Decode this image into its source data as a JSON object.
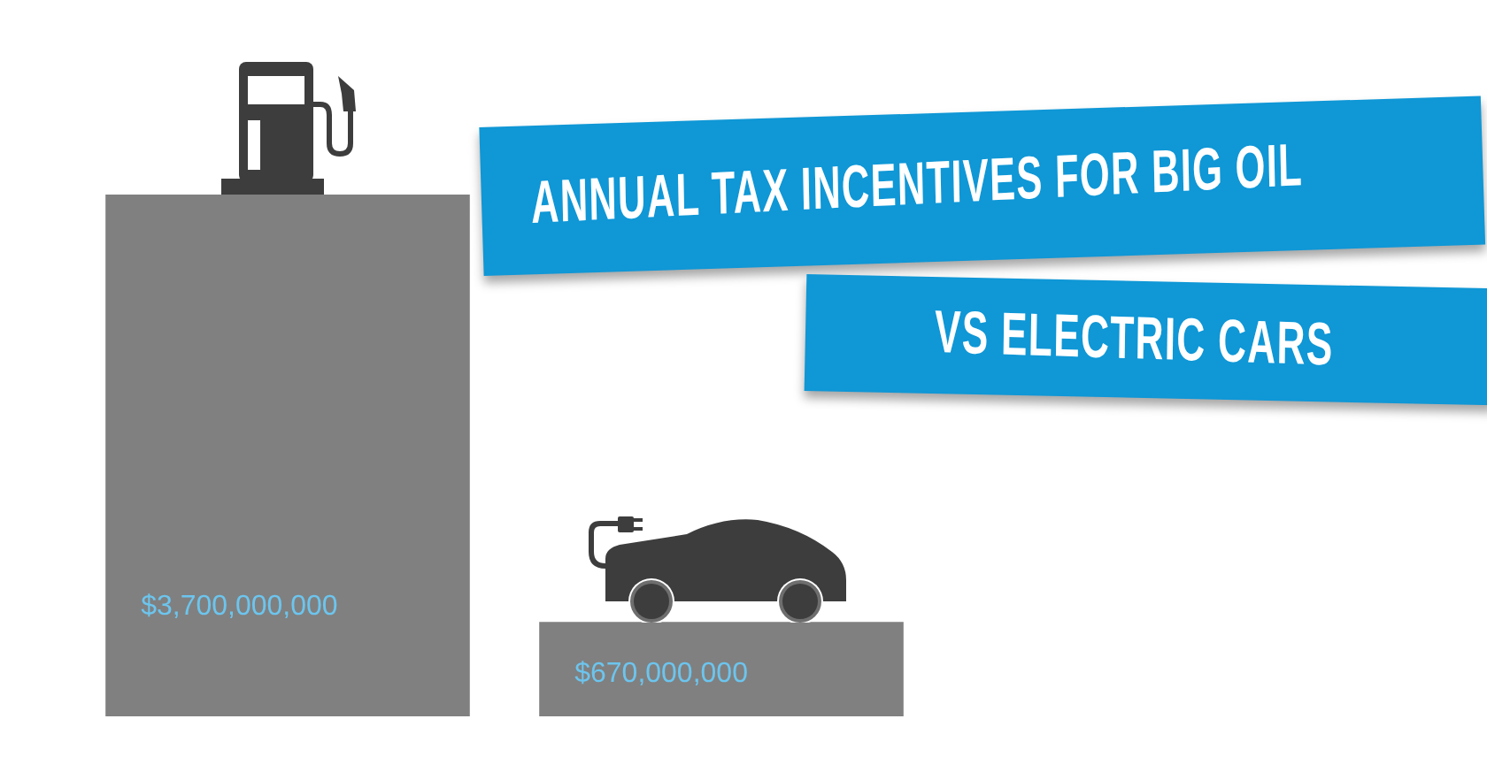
{
  "chart_data": {
    "type": "bar",
    "title": "ANNUAL TAX INCENTIVES FOR BIG OIL",
    "subtitle": "VS ELECTRIC CARS",
    "categories": [
      null,
      null
    ],
    "values": [
      3700000000,
      670000000
    ],
    "color": "#808080",
    "value_labels": [
      "$3,700,000,000",
      "$670,000,000"
    ]
  }
}
